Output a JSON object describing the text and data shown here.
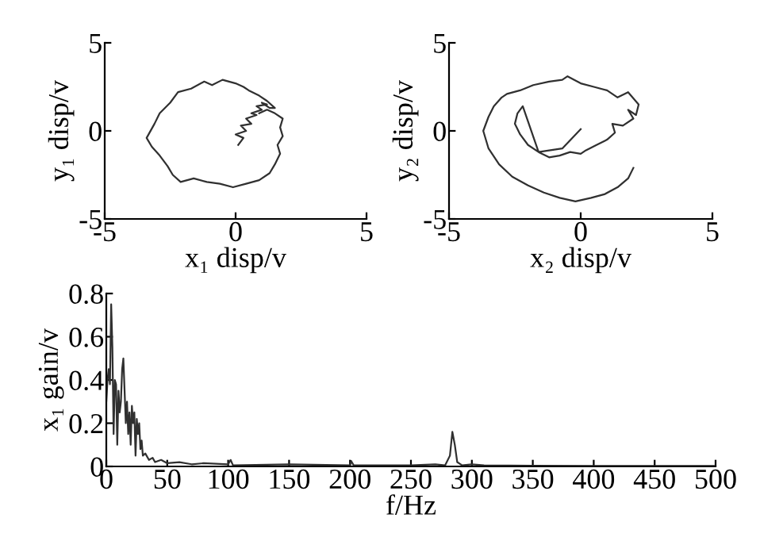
{
  "chart_data": [
    {
      "type": "line",
      "xlabel": "x₁ disp/v",
      "ylabel": "y₁ disp/v",
      "xlim": [
        -5,
        5
      ],
      "ylim": [
        -5,
        5
      ],
      "xticks": [
        -5,
        0,
        5
      ],
      "yticks": [
        -5,
        0,
        5
      ],
      "series": [
        {
          "color": "#303030",
          "x": [
            0.1,
            0.3,
            0.0,
            0.4,
            0.2,
            0.6,
            0.4,
            0.8,
            0.6,
            1.0,
            0.8,
            1.2,
            1.0,
            1.3,
            1.5,
            1.2,
            0.9,
            0.5,
            0.3,
            0.0,
            -0.5,
            -0.9,
            -1.2,
            -1.7,
            -2.2,
            -2.5,
            -2.9,
            -3.1,
            -3.4,
            -3.2,
            -2.9,
            -2.6,
            -2.4,
            -2.1,
            -1.6,
            -1.1,
            -0.6,
            -0.1,
            0.4,
            0.9,
            1.3,
            1.5,
            1.7,
            1.6,
            1.8,
            1.7,
            1.8,
            1.5,
            1.2,
            0.9
          ],
          "values": [
            -0.8,
            -0.4,
            -0.2,
            0.0,
            0.3,
            0.4,
            0.7,
            0.9,
            1.0,
            1.2,
            1.4,
            1.5,
            1.6,
            1.3,
            1.3,
            1.7,
            2.0,
            2.3,
            2.5,
            2.7,
            2.9,
            2.6,
            2.8,
            2.4,
            2.2,
            1.6,
            1.0,
            0.4,
            -0.4,
            -0.9,
            -1.4,
            -2.0,
            -2.5,
            -2.9,
            -2.7,
            -2.9,
            -3.0,
            -3.2,
            -3.0,
            -2.8,
            -2.4,
            -1.9,
            -1.3,
            -0.8,
            -0.3,
            0.2,
            0.7,
            1.0,
            1.2,
            1.0
          ]
        }
      ]
    },
    {
      "type": "line",
      "xlabel": "x₂ disp/v",
      "ylabel": "y₂ disp/v",
      "xlim": [
        -5,
        5
      ],
      "ylim": [
        -5,
        5
      ],
      "xticks": [
        -5,
        0,
        5
      ],
      "yticks": [
        -5,
        0,
        5
      ],
      "series": [
        {
          "color": "#303030",
          "x": [
            2.0,
            1.8,
            1.4,
            0.9,
            0.4,
            -0.2,
            -0.8,
            -1.4,
            -2.0,
            -2.6,
            -3.1,
            -3.5,
            -3.7,
            -3.5,
            -3.3,
            -3.0,
            -2.8,
            -2.3,
            -1.8,
            -1.2,
            -0.7,
            -0.5,
            0.0,
            0.5,
            1.0,
            1.4,
            1.8,
            2.2,
            2.1,
            1.8,
            2.0,
            1.6,
            1.2,
            1.3,
            1.0,
            0.6,
            0.2,
            0.0,
            -0.4,
            -0.8,
            -1.2,
            -1.6,
            -2.0,
            -2.3,
            -2.5,
            -2.4,
            -2.2,
            -1.6,
            -0.7,
            0.0
          ],
          "values": [
            -2.1,
            -2.7,
            -3.2,
            -3.6,
            -3.8,
            -4.0,
            -3.8,
            -3.5,
            -3.1,
            -2.6,
            -1.9,
            -1.0,
            0.0,
            0.8,
            1.4,
            1.9,
            2.1,
            2.3,
            2.6,
            2.8,
            2.9,
            3.1,
            2.7,
            2.5,
            2.3,
            1.9,
            2.2,
            1.5,
            0.9,
            1.2,
            0.7,
            0.3,
            0.4,
            -0.1,
            -0.5,
            -0.8,
            -1.1,
            -1.3,
            -1.2,
            -1.4,
            -1.5,
            -1.2,
            -0.8,
            -0.2,
            0.4,
            1.0,
            1.4,
            -1.2,
            -1.0,
            0.1
          ]
        }
      ]
    },
    {
      "type": "line",
      "xlabel": "f/Hz",
      "ylabel": "x₁ gain/v",
      "xlim": [
        0,
        500
      ],
      "ylim": [
        0,
        0.8
      ],
      "xticks": [
        0,
        50,
        100,
        150,
        200,
        250,
        300,
        350,
        400,
        450,
        500
      ],
      "yticks": [
        0,
        0.2,
        0.4,
        0.6,
        0.8
      ],
      "series": [
        {
          "color": "#303030",
          "x": [
            0,
            1,
            2,
            3,
            4,
            5,
            6,
            7,
            8,
            9,
            10,
            11,
            12,
            13,
            14,
            15,
            16,
            17,
            18,
            19,
            20,
            21,
            22,
            23,
            24,
            25,
            26,
            27,
            28,
            29,
            30,
            32,
            35,
            38,
            40,
            45,
            50,
            60,
            70,
            80,
            100,
            102,
            104,
            150,
            200,
            201,
            203,
            250,
            270,
            278,
            282,
            284,
            286,
            288,
            292,
            300,
            310,
            350,
            400,
            500
          ],
          "values": [
            0.3,
            0.4,
            0.45,
            0.38,
            0.75,
            0.55,
            0.15,
            0.4,
            0.38,
            0.1,
            0.35,
            0.25,
            0.3,
            0.45,
            0.5,
            0.35,
            0.2,
            0.3,
            0.15,
            0.25,
            0.1,
            0.28,
            0.2,
            0.25,
            0.05,
            0.22,
            0.15,
            0.2,
            0.08,
            0.12,
            0.05,
            0.06,
            0.03,
            0.04,
            0.02,
            0.03,
            0.015,
            0.02,
            0.01,
            0.015,
            0.01,
            0.03,
            0.005,
            0.01,
            0.005,
            0.025,
            0.005,
            0.005,
            0.01,
            0.005,
            0.05,
            0.16,
            0.1,
            0.02,
            0.005,
            0.01,
            0.005,
            0.003,
            0.002,
            0.002
          ]
        }
      ]
    }
  ]
}
